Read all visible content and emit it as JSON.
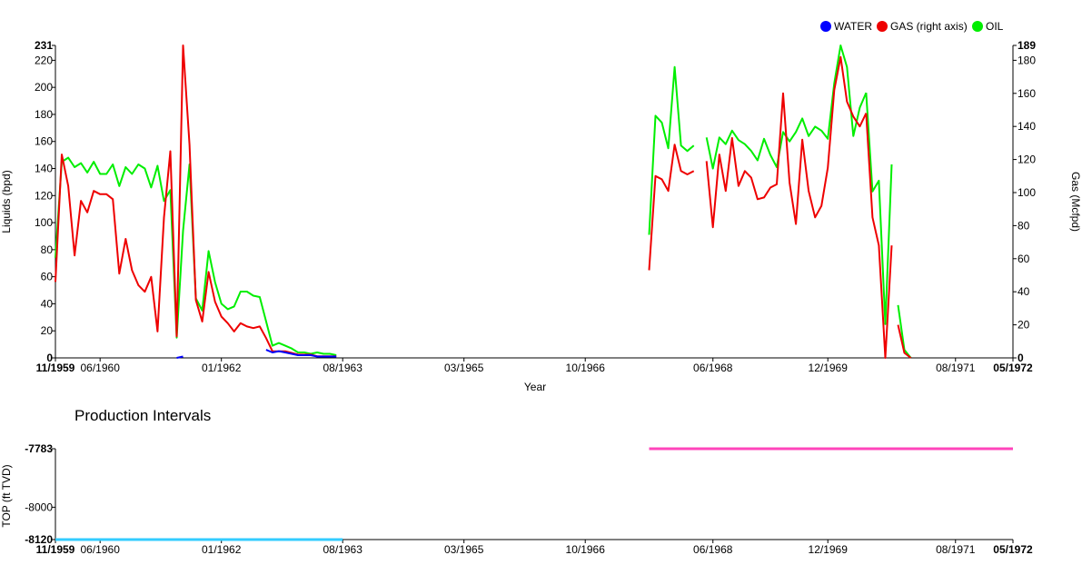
{
  "colors": {
    "water": "#0000ff",
    "gas": "#ee0000",
    "oil": "#00ee00",
    "interval_top": "#ff44bb",
    "interval_bottom": "#33ccff"
  },
  "chart_data": [
    {
      "type": "line",
      "xlabel": "Year",
      "ylabel": "Liquids (bpd)",
      "y2label": "Gas (Mcfpd)",
      "ylim": [
        0,
        231
      ],
      "y2lim": [
        0,
        189
      ],
      "x_range": [
        "11/1959",
        "05/1972"
      ],
      "x_ticks": [
        "11/1959",
        "06/1960",
        "01/1962",
        "08/1963",
        "03/1965",
        "10/1966",
        "06/1968",
        "12/1969",
        "08/1971",
        "05/1972"
      ],
      "x_tick_months": [
        0,
        7,
        26,
        45,
        64,
        83,
        103,
        121,
        141,
        150
      ],
      "y_ticks": [
        0,
        20,
        40,
        60,
        80,
        100,
        120,
        140,
        160,
        180,
        200,
        220,
        231
      ],
      "y2_ticks": [
        0,
        20,
        40,
        60,
        80,
        100,
        120,
        140,
        160,
        180,
        189
      ],
      "legend_position": "top-right",
      "series": [
        {
          "name": "WATER",
          "axis": "left",
          "segments": [
            {
              "x": [
                19,
                20
              ],
              "y": [
                0,
                1
              ]
            },
            {
              "x": [
                33,
                34,
                35,
                36,
                37,
                38,
                39,
                40,
                41,
                42,
                43,
                44
              ],
              "y": [
                6,
                4,
                5,
                4,
                3,
                2,
                2,
                2,
                1,
                1,
                1,
                1
              ]
            }
          ]
        },
        {
          "name": "GAS (right axis)",
          "axis": "right",
          "segments": [
            {
              "x": [
                0,
                1,
                2,
                3,
                4,
                5,
                6,
                7,
                8,
                9,
                10,
                11,
                12,
                13,
                14,
                15,
                16,
                17,
                18,
                19,
                20,
                21,
                22,
                23,
                24,
                25,
                26,
                27,
                28,
                29,
                30,
                31,
                32,
                33,
                34,
                35,
                36,
                37,
                38,
                39,
                40,
                41,
                42,
                43,
                44
              ],
              "y": [
                46,
                123,
                104,
                62,
                95,
                88,
                101,
                99,
                99,
                96,
                51,
                72,
                53,
                44,
                40,
                49,
                16,
                85,
                125,
                13,
                189,
                129,
                35,
                22,
                52,
                34,
                25,
                21,
                16,
                21,
                19,
                18,
                19,
                12,
                4,
                4,
                4,
                3,
                2,
                2,
                2,
                1,
                1,
                1,
                1
              ]
            },
            {
              "x": [
                93,
                94,
                95,
                96,
                97,
                98,
                99,
                100
              ],
              "y": [
                53,
                110,
                108,
                101,
                129,
                113,
                111,
                113
              ]
            },
            {
              "x": [
                102,
                103,
                104,
                105,
                106,
                107,
                108,
                109,
                110,
                111,
                112,
                113,
                114,
                115,
                116,
                117,
                118,
                119,
                120,
                121,
                122,
                123,
                124,
                125,
                126,
                127
              ],
              "y": [
                119,
                79,
                123,
                101,
                133,
                104,
                113,
                109,
                96,
                97,
                103,
                105,
                160,
                106,
                81,
                132,
                101,
                85,
                92,
                115,
                162,
                182,
                155,
                146,
                140,
                148
              ]
            },
            {
              "x": [
                127,
                128,
                129,
                130,
                131
              ],
              "y": [
                148,
                85,
                68,
                0,
                68
              ]
            },
            {
              "x": [
                132,
                133,
                134
              ],
              "y": [
                20,
                3,
                0
              ]
            }
          ]
        },
        {
          "name": "OIL",
          "axis": "left",
          "segments": [
            {
              "x": [
                0,
                1,
                2,
                3,
                4,
                5,
                6,
                7,
                8,
                9,
                10,
                11,
                12,
                13,
                14,
                15,
                16,
                17,
                18,
                19,
                20,
                21,
                22,
                23,
                24,
                25,
                26,
                27,
                28,
                29,
                30,
                31,
                32,
                33,
                34,
                35,
                36,
                37,
                38,
                39,
                40,
                41,
                42,
                43,
                44
              ],
              "y": [
                74,
                145,
                148,
                141,
                144,
                137,
                145,
                136,
                136,
                143,
                127,
                141,
                136,
                143,
                140,
                126,
                142,
                116,
                124,
                15,
                94,
                143,
                44,
                35,
                79,
                56,
                40,
                36,
                38,
                49,
                49,
                46,
                45,
                27,
                9,
                11,
                9,
                7,
                4,
                4,
                3,
                4,
                3,
                3,
                2
              ]
            },
            {
              "x": [
                93,
                94,
                95,
                96,
                97,
                98,
                99,
                100
              ],
              "y": [
                91,
                179,
                174,
                155,
                215,
                157,
                153,
                157
              ]
            },
            {
              "x": [
                102,
                103,
                104,
                105,
                106,
                107,
                108,
                109,
                110,
                111,
                112,
                113,
                114,
                115,
                116,
                117,
                118,
                119,
                120,
                121,
                122,
                123,
                124,
                125,
                126,
                127
              ],
              "y": [
                163,
                140,
                163,
                158,
                168,
                161,
                158,
                153,
                146,
                162,
                150,
                141,
                167,
                160,
                167,
                177,
                164,
                171,
                168,
                162,
                203,
                231,
                215,
                164,
                185,
                196
              ]
            },
            {
              "x": [
                127,
                128,
                129,
                130,
                131
              ],
              "y": [
                196,
                123,
                131,
                25,
                143
              ]
            },
            {
              "x": [
                132,
                133,
                134
              ],
              "y": [
                39,
                6,
                0
              ]
            }
          ]
        }
      ]
    },
    {
      "type": "line",
      "title": "Production Intervals",
      "ylabel": "TOP (ft TVD)",
      "ylim": [
        -8120,
        -7783
      ],
      "y_ticks": [
        -7783,
        -8000,
        -8120
      ],
      "x_range": [
        "11/1959",
        "05/1972"
      ],
      "x_ticks": [
        "11/1959",
        "06/1960",
        "01/1962",
        "08/1963",
        "03/1965",
        "10/1966",
        "06/1968",
        "12/1969",
        "08/1971",
        "05/1972"
      ],
      "x_tick_months": [
        0,
        7,
        26,
        45,
        64,
        83,
        103,
        121,
        141,
        150
      ],
      "series": [
        {
          "x": [
            0,
            45
          ],
          "y": [
            -8120,
            -8120
          ]
        },
        {
          "x": [
            93,
            150
          ],
          "y": [
            -7783,
            -7783
          ]
        }
      ]
    }
  ]
}
